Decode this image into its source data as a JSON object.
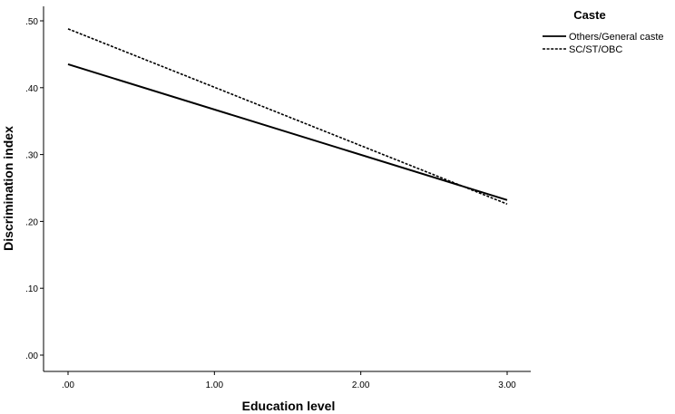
{
  "chart_data": {
    "type": "line",
    "xlabel": "Education level",
    "ylabel": "Discrimination index",
    "xlim": [
      0,
      3
    ],
    "ylim": [
      0,
      0.5
    ],
    "x_ticks": [
      ".00",
      "1.00",
      "2.00",
      "3.00"
    ],
    "y_ticks": [
      ".00",
      ".10",
      ".20",
      ".30",
      ".40",
      ".50"
    ],
    "x_tick_values": [
      0,
      1,
      2,
      3
    ],
    "y_tick_values": [
      0,
      0.1,
      0.2,
      0.3,
      0.4,
      0.5
    ],
    "grid": false,
    "legend": {
      "title": "Caste",
      "position": "top-right",
      "entries": [
        "Others/General caste",
        "SC/ST/OBC"
      ]
    },
    "series": [
      {
        "name": "Others/General caste",
        "style": "solid",
        "color": "#000000",
        "x": [
          0,
          3
        ],
        "y": [
          0.435,
          0.232
        ]
      },
      {
        "name": "SC/ST/OBC",
        "style": "dashed",
        "color": "#000000",
        "x": [
          0,
          3
        ],
        "y": [
          0.488,
          0.226
        ]
      }
    ]
  }
}
